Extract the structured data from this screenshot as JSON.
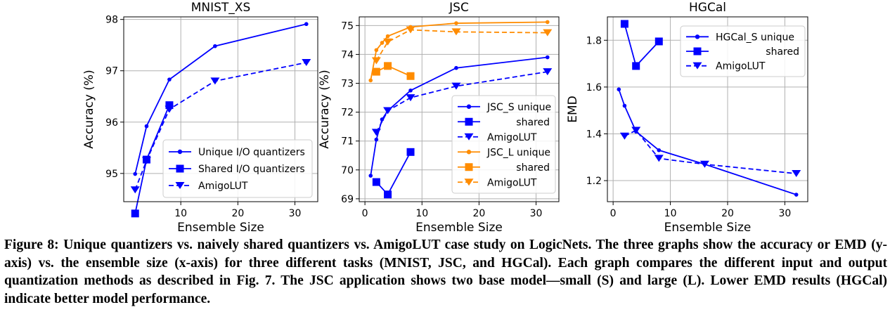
{
  "chart_data": [
    {
      "type": "line",
      "title": "MNIST_XS",
      "xlabel": "Ensemble Size",
      "ylabel": "Accuracy (%)",
      "xlim": [
        0,
        34
      ],
      "ylim": [
        94.45,
        98.05
      ],
      "xticks": [
        "10",
        "20",
        "30"
      ],
      "yticks": [
        "95",
        "96",
        "97",
        "98"
      ],
      "grid": true,
      "legend_position": "bottom-right",
      "series": [
        {
          "name": "Unique I/O quantizers",
          "marker": "dot",
          "dash": false,
          "color": "#0000ff",
          "x": [
            2,
            4,
            8,
            16,
            32
          ],
          "y": [
            94.99,
            95.92,
            96.83,
            97.48,
            97.91
          ]
        },
        {
          "name": "Shared I/O quantizers",
          "marker": "square",
          "dash": false,
          "color": "#0000ff",
          "x": [
            2,
            4,
            8
          ],
          "y": [
            94.22,
            95.27,
            96.33
          ]
        },
        {
          "name": "AmigoLUT",
          "marker": "triangle-down",
          "dash": true,
          "color": "#0000ff",
          "x": [
            2,
            4,
            8,
            16,
            32
          ],
          "y": [
            94.68,
            95.25,
            96.25,
            96.8,
            97.16
          ]
        }
      ]
    },
    {
      "type": "line",
      "title": "JSC",
      "xlabel": "Ensemble Size",
      "ylabel": "Accuracy (%)",
      "xlim": [
        -1,
        34
      ],
      "ylim": [
        68.9,
        75.3
      ],
      "xticks": [
        "0",
        "10",
        "20",
        "30"
      ],
      "yticks": [
        "69",
        "70",
        "71",
        "72",
        "73",
        "74",
        "75"
      ],
      "grid": true,
      "legend_position": "bottom-right",
      "series": [
        {
          "name": "JSC_S unique",
          "marker": "dot",
          "dash": false,
          "color": "#0000ff",
          "x": [
            1,
            2,
            3,
            4,
            8,
            16,
            32
          ],
          "y": [
            69.8,
            71.05,
            71.75,
            72.05,
            72.75,
            73.53,
            73.9
          ]
        },
        {
          "name": "shared",
          "marker": "square",
          "dash": false,
          "color": "#0000ff",
          "x": [
            2,
            4,
            8
          ],
          "y": [
            69.58,
            69.15,
            70.62
          ]
        },
        {
          "name": "AmigoLUT",
          "marker": "triangle-down",
          "dash": true,
          "color": "#0000ff",
          "x": [
            2,
            4,
            8,
            16,
            32
          ],
          "y": [
            71.3,
            72.05,
            72.5,
            72.9,
            73.4
          ]
        },
        {
          "name": "JSC_L unique",
          "marker": "dot",
          "dash": false,
          "color": "#ff8c00",
          "x": [
            1,
            2,
            3,
            4,
            8,
            16,
            32
          ],
          "y": [
            73.1,
            74.15,
            74.4,
            74.63,
            74.95,
            75.08,
            75.12
          ]
        },
        {
          "name": "shared",
          "marker": "square",
          "dash": false,
          "color": "#ff8c00",
          "x": [
            2,
            4,
            8
          ],
          "y": [
            73.4,
            73.6,
            73.25
          ]
        },
        {
          "name": "AmigoLUT",
          "marker": "triangle-down",
          "dash": true,
          "color": "#ff8c00",
          "x": [
            2,
            4,
            8,
            16,
            32
          ],
          "y": [
            73.78,
            74.43,
            74.85,
            74.78,
            74.75
          ]
        }
      ]
    },
    {
      "type": "line",
      "title": "HGCal",
      "xlabel": "Ensemble Size",
      "ylabel": "EMD",
      "xlim": [
        -1,
        34
      ],
      "ylim": [
        1.11,
        1.9
      ],
      "xticks": [
        "0",
        "10",
        "20",
        "30"
      ],
      "yticks": [
        "1.2",
        "1.4",
        "1.6",
        "1.8"
      ],
      "grid": true,
      "legend_position": "top-right",
      "series": [
        {
          "name": "HGCal_S unique",
          "marker": "dot",
          "dash": false,
          "color": "#0000ff",
          "x": [
            1,
            2,
            4,
            8,
            16,
            32
          ],
          "y": [
            1.59,
            1.52,
            1.41,
            1.33,
            1.27,
            1.14
          ]
        },
        {
          "name": "shared",
          "marker": "square",
          "dash": false,
          "color": "#0000ff",
          "x": [
            2,
            4,
            8
          ],
          "y": [
            1.87,
            1.69,
            1.795
          ]
        },
        {
          "name": "AmigoLUT",
          "marker": "triangle-down",
          "dash": true,
          "color": "#0000ff",
          "x": [
            2,
            4,
            8,
            16,
            32
          ],
          "y": [
            1.39,
            1.415,
            1.295,
            1.27,
            1.23
          ]
        }
      ]
    }
  ],
  "caption": "Figure 8: Unique quantizers vs. naively shared quantizers vs. AmigoLUT case study on LogicNets. The three graphs show the accuracy or EMD (y-axis) vs. the ensemble size (x-axis) for three different tasks (MNIST, JSC, and HGCal). Each graph compares the different input and output quantization methods as described in Fig. 7. The JSC application shows two base model—small (S) and large (L). Lower EMD results (HGCal) indicate better model performance."
}
